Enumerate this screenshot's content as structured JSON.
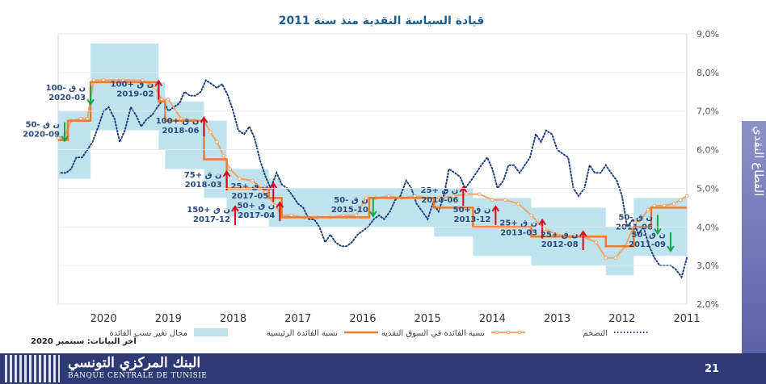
{
  "source_note": "آخر البيانات: سبتمبر 2020",
  "sidebar_label": "القطاع النقدي",
  "page_number": "21",
  "logo": {
    "arabic": "البنك المركزي التونسي",
    "french": "BANQUE CENTRALE DE TUNISIE"
  },
  "colors": {
    "band": "#bfe3ee",
    "policy": "#f07a2e",
    "market": "#f5a36a",
    "inflation": "#1f3f7a",
    "up_arrow": "#e0001a",
    "down_arrow": "#1aa34a",
    "title": "#1f5e8c",
    "label": "#2a4a7c"
  },
  "chart_data": {
    "type": "line",
    "title": "قيادة السياسة النقدية منذ سنة 2011",
    "x_axis": {
      "reversed": true,
      "range": [
        2011.0,
        2020.7
      ],
      "ticks": [
        2011,
        2012,
        2013,
        2014,
        2015,
        2016,
        2017,
        2018,
        2019,
        2020
      ],
      "tick_labels": [
        "2011",
        "2012",
        "2013",
        "2014",
        "2015",
        "2016",
        "2017",
        "2018",
        "2019",
        "2020"
      ]
    },
    "y_axis": {
      "range": [
        2.0,
        9.0
      ],
      "ticks": [
        2,
        3,
        4,
        5,
        6,
        7,
        8,
        9
      ],
      "tick_labels": [
        "2,0%",
        "3,0%",
        "4,0%",
        "5,0%",
        "6,0%",
        "7,0%",
        "8,0%",
        "9,0%"
      ]
    },
    "legend": [
      {
        "key": "band",
        "label": "مجال تغير نسب الفائدة"
      },
      {
        "key": "policy",
        "label": "نسبة الفائدة الرئيسية"
      },
      {
        "key": "market",
        "label": "نسبة الفائدة في السوق النقدية"
      },
      {
        "key": "inflation",
        "label": "التضخم"
      }
    ],
    "series": [
      {
        "name": "نسبة الفائدة الرئيسية",
        "key": "policy",
        "x": [
          2011.0,
          2011.55,
          2011.55,
          2011.82,
          2011.82,
          2012.25,
          2012.25,
          2013.4,
          2013.4,
          2014.3,
          2014.3,
          2014.9,
          2014.9,
          2015.9,
          2015.9,
          2017.25,
          2017.25,
          2017.45,
          2017.45,
          2018.1,
          2018.1,
          2018.45,
          2018.45,
          2019.05,
          2019.05,
          2019.15,
          2019.15,
          2020.2,
          2020.2,
          2020.55,
          2020.55,
          2020.7
        ],
        "values": [
          4.5,
          4.5,
          4.0,
          4.0,
          3.5,
          3.5,
          3.75,
          3.75,
          4.0,
          4.0,
          4.5,
          4.5,
          4.75,
          4.75,
          4.25,
          4.25,
          4.75,
          4.75,
          5.0,
          5.0,
          5.75,
          5.75,
          6.75,
          6.75,
          7.25,
          7.25,
          7.75,
          7.75,
          6.75,
          6.75,
          6.25,
          6.25
        ]
      },
      {
        "name": "نسبة الفائدة في السوق النقدية",
        "key": "market",
        "x": [
          2011.0,
          2011.1,
          2011.2,
          2011.35,
          2011.5,
          2011.6,
          2011.7,
          2011.8,
          2011.95,
          2012.1,
          2012.25,
          2012.4,
          2012.6,
          2012.8,
          2013.0,
          2013.2,
          2013.4,
          2013.6,
          2013.8,
          2014.0,
          2014.2,
          2014.4,
          2014.6,
          2014.8,
          2015.0,
          2015.2,
          2015.4,
          2015.6,
          2015.8,
          2015.95,
          2016.1,
          2016.3,
          2016.5,
          2016.7,
          2016.9,
          2017.1,
          2017.25,
          2017.35,
          2017.5,
          2017.7,
          2017.9,
          2018.05,
          2018.15,
          2018.25,
          2018.35,
          2018.45,
          2018.6,
          2018.8,
          2019.0,
          2019.1,
          2019.2,
          2019.4,
          2019.7,
          2020.0,
          2020.15,
          2020.25,
          2020.35,
          2020.5,
          2020.6,
          2020.7
        ],
        "values": [
          4.8,
          4.7,
          4.6,
          4.55,
          4.55,
          4.45,
          4.2,
          4.1,
          3.5,
          3.2,
          3.2,
          3.6,
          3.75,
          3.75,
          3.8,
          3.95,
          4.3,
          4.6,
          4.7,
          4.7,
          4.85,
          4.85,
          4.8,
          4.75,
          4.75,
          4.8,
          4.75,
          4.8,
          4.75,
          4.75,
          4.3,
          4.3,
          4.25,
          4.25,
          4.25,
          4.3,
          4.3,
          4.55,
          4.9,
          5.2,
          5.25,
          5.5,
          5.85,
          6.2,
          6.45,
          6.75,
          6.75,
          6.8,
          7.3,
          7.3,
          7.6,
          7.8,
          7.8,
          7.8,
          7.8,
          6.8,
          6.8,
          6.75,
          6.35,
          6.3
        ]
      },
      {
        "name": "التضخم",
        "key": "inflation",
        "x": [
          2011.0,
          2011.08,
          2011.17,
          2011.25,
          2011.33,
          2011.42,
          2011.5,
          2011.58,
          2011.67,
          2011.75,
          2011.83,
          2011.92,
          2012.0,
          2012.08,
          2012.17,
          2012.25,
          2012.33,
          2012.42,
          2012.5,
          2012.58,
          2012.67,
          2012.75,
          2012.83,
          2012.92,
          2013.0,
          2013.08,
          2013.17,
          2013.25,
          2013.33,
          2013.42,
          2013.5,
          2013.58,
          2013.67,
          2013.75,
          2013.83,
          2013.92,
          2014.0,
          2014.08,
          2014.17,
          2014.25,
          2014.33,
          2014.42,
          2014.5,
          2014.58,
          2014.67,
          2014.75,
          2014.83,
          2014.92,
          2015.0,
          2015.08,
          2015.17,
          2015.25,
          2015.33,
          2015.42,
          2015.5,
          2015.58,
          2015.67,
          2015.75,
          2015.83,
          2015.92,
          2016.0,
          2016.08,
          2016.17,
          2016.25,
          2016.33,
          2016.42,
          2016.5,
          2016.58,
          2016.67,
          2016.75,
          2016.83,
          2016.92,
          2017.0,
          2017.08,
          2017.17,
          2017.25,
          2017.33,
          2017.42,
          2017.5,
          2017.58,
          2017.67,
          2017.75,
          2017.83,
          2017.92,
          2018.0,
          2018.08,
          2018.17,
          2018.25,
          2018.33,
          2018.42,
          2018.5,
          2018.58,
          2018.67,
          2018.75,
          2018.83,
          2018.92,
          2019.0,
          2019.08,
          2019.17,
          2019.25,
          2019.33,
          2019.42,
          2019.5,
          2019.58,
          2019.67,
          2019.75,
          2019.83,
          2019.92,
          2020.0,
          2020.08,
          2020.17,
          2020.25,
          2020.33,
          2020.42,
          2020.5,
          2020.58,
          2020.67
        ],
        "values": [
          3.2,
          2.7,
          2.9,
          3.0,
          3.0,
          3.0,
          3.2,
          3.5,
          4.0,
          3.8,
          4.2,
          4.0,
          4.8,
          5.2,
          5.4,
          5.6,
          5.4,
          5.4,
          5.6,
          5.0,
          4.8,
          5.0,
          5.8,
          5.9,
          6.0,
          6.4,
          6.5,
          6.2,
          6.4,
          5.8,
          5.6,
          5.4,
          5.6,
          5.6,
          5.2,
          5.0,
          5.5,
          5.8,
          5.6,
          5.4,
          5.2,
          5.0,
          5.3,
          5.4,
          5.5,
          4.8,
          4.4,
          4.6,
          4.2,
          4.4,
          4.6,
          5.0,
          5.2,
          4.8,
          4.7,
          4.4,
          4.2,
          4.3,
          4.2,
          4.0,
          3.9,
          3.8,
          3.6,
          3.5,
          3.5,
          3.6,
          3.8,
          3.6,
          4.0,
          4.2,
          4.2,
          4.5,
          4.6,
          4.8,
          5.0,
          5.1,
          5.4,
          5.0,
          5.3,
          5.7,
          6.3,
          6.6,
          6.4,
          6.5,
          7.0,
          7.4,
          7.7,
          7.6,
          7.7,
          7.8,
          7.5,
          7.4,
          7.4,
          7.5,
          7.2,
          7.1,
          7.0,
          7.3,
          7.1,
          6.9,
          6.8,
          6.6,
          6.9,
          7.1,
          6.5,
          6.2,
          6.8,
          7.1,
          7.0,
          6.6,
          6.2,
          6.0,
          5.8,
          5.8,
          5.5,
          5.4,
          5.4
        ]
      }
    ],
    "band": {
      "name": "مجال تغير نسب الفائدة",
      "x": [
        2011.0,
        2011.55,
        2011.55,
        2011.82,
        2011.82,
        2012.25,
        2012.25,
        2013.4,
        2013.4,
        2014.3,
        2014.3,
        2014.9,
        2014.9,
        2015.9,
        2015.9,
        2017.25,
        2017.25,
        2017.45,
        2017.45,
        2018.1,
        2018.1,
        2018.45,
        2018.45,
        2019.05,
        2019.05,
        2019.15,
        2019.15,
        2020.2,
        2020.2,
        2020.55,
        2020.55,
        2020.7
      ],
      "lower": [
        3.25,
        3.25,
        3.25,
        3.25,
        2.75,
        2.75,
        3.0,
        3.0,
        3.25,
        3.25,
        3.75,
        3.75,
        4.0,
        4.0,
        4.0,
        4.0,
        4.0,
        4.0,
        4.25,
        4.25,
        4.75,
        4.75,
        5.5,
        5.5,
        6.0,
        6.0,
        6.5,
        6.5,
        5.25,
        5.25,
        5.25,
        5.25
      ],
      "upper": [
        4.75,
        4.75,
        4.75,
        4.75,
        4.0,
        4.0,
        4.5,
        4.5,
        4.75,
        4.75,
        5.0,
        5.0,
        5.0,
        5.0,
        5.0,
        5.0,
        5.25,
        5.25,
        5.5,
        5.5,
        6.75,
        6.75,
        7.25,
        7.25,
        7.75,
        7.75,
        8.75,
        8.75,
        7.0,
        7.0,
        7.0,
        7.0
      ]
    },
    "annotations": [
      {
        "text": "50- ن ق",
        "date": "2020-09",
        "direction": "down",
        "x": 2020.6,
        "y": 6.5
      },
      {
        "text": "100- ن ق",
        "date": "2020-03",
        "direction": "down",
        "x": 2020.2,
        "y": 7.45
      },
      {
        "text": "100+ ن ق",
        "date": "2019-02",
        "direction": "up",
        "x": 2019.15,
        "y": 7.55
      },
      {
        "text": "100+ ن ق",
        "date": "2018-06",
        "direction": "up",
        "x": 2018.45,
        "y": 6.6
      },
      {
        "text": "75+ ن ق",
        "date": "2018-03",
        "direction": "up",
        "x": 2018.1,
        "y": 5.2
      },
      {
        "text": "150+ ن ق",
        "date": "2017-12",
        "direction": "up",
        "x": 2017.97,
        "y": 4.3
      },
      {
        "text": "25+ ن ق",
        "date": "2017-05",
        "direction": "up",
        "x": 2017.38,
        "y": 4.9
      },
      {
        "text": "50+ ن ق",
        "date": "2017-04",
        "direction": "up",
        "x": 2017.28,
        "y": 4.4
      },
      {
        "text": "50- ن ق",
        "date": "2015-10",
        "direction": "down",
        "x": 2015.84,
        "y": 4.55
      },
      {
        "text": "25+ ن ق",
        "date": "2014-06",
        "direction": "up",
        "x": 2014.45,
        "y": 4.8
      },
      {
        "text": "50+ ن ق",
        "date": "2013-12",
        "direction": "up",
        "x": 2013.95,
        "y": 4.3
      },
      {
        "text": "25+ ن ق",
        "date": "2013-03",
        "direction": "up",
        "x": 2013.23,
        "y": 3.95
      },
      {
        "text": "25+ ن ق",
        "date": "2012-08",
        "direction": "up",
        "x": 2012.6,
        "y": 3.65
      },
      {
        "text": "50- ن ق",
        "date": "2011-06",
        "direction": "down",
        "x": 2011.45,
        "y": 4.1
      },
      {
        "text": "50- ن ق",
        "date": "2011-09",
        "direction": "down",
        "x": 2011.25,
        "y": 3.65
      }
    ]
  }
}
